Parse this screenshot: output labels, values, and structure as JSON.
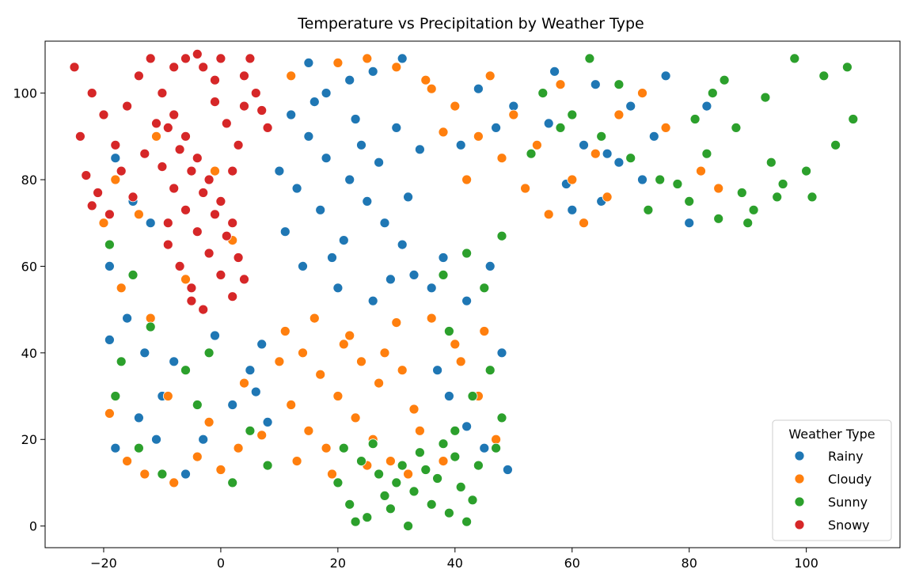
{
  "chart_data": {
    "type": "scatter",
    "title": "Temperature vs Precipitation by Weather Type",
    "xlabel": "",
    "ylabel": "",
    "xlim": [
      -30,
      116
    ],
    "ylim": [
      -5,
      112
    ],
    "x_ticks": [
      -20,
      0,
      20,
      40,
      60,
      80,
      100
    ],
    "y_ticks": [
      0,
      20,
      40,
      60,
      80,
      100
    ],
    "grid": false,
    "legend": {
      "title": "Weather Type",
      "placement": "bottom-right"
    },
    "series": [
      {
        "name": "Rainy",
        "color": "#1f77b4",
        "points": [
          [
            12,
            95
          ],
          [
            15,
            90
          ],
          [
            18,
            85
          ],
          [
            22,
            80
          ],
          [
            25,
            75
          ],
          [
            28,
            70
          ],
          [
            31,
            65
          ],
          [
            14,
            60
          ],
          [
            20,
            55
          ],
          [
            26,
            52
          ],
          [
            33,
            58
          ],
          [
            11,
            68
          ],
          [
            17,
            73
          ],
          [
            24,
            88
          ],
          [
            30,
            92
          ],
          [
            13,
            78
          ],
          [
            19,
            62
          ],
          [
            27,
            84
          ],
          [
            32,
            76
          ],
          [
            16,
            98
          ],
          [
            21,
            66
          ],
          [
            29,
            57
          ],
          [
            23,
            94
          ],
          [
            34,
            87
          ],
          [
            10,
            82
          ],
          [
            18,
            100
          ],
          [
            26,
            105
          ],
          [
            31,
            108
          ],
          [
            15,
            107
          ],
          [
            22,
            103
          ],
          [
            44,
            101
          ],
          [
            50,
            97
          ],
          [
            56,
            93
          ],
          [
            62,
            88
          ],
          [
            68,
            84
          ],
          [
            74,
            90
          ],
          [
            59,
            79
          ],
          [
            65,
            75
          ],
          [
            72,
            80
          ],
          [
            53,
            86
          ],
          [
            47,
            92
          ],
          [
            41,
            88
          ],
          [
            57,
            105
          ],
          [
            64,
            102
          ],
          [
            70,
            97
          ],
          [
            76,
            104
          ],
          [
            80,
            70
          ],
          [
            83,
            97
          ],
          [
            60,
            73
          ],
          [
            66,
            86
          ],
          [
            -18,
            85
          ],
          [
            -15,
            75
          ],
          [
            -12,
            70
          ],
          [
            -19,
            60
          ],
          [
            -16,
            48
          ],
          [
            -13,
            40
          ],
          [
            -19,
            43
          ],
          [
            -10,
            30
          ],
          [
            -14,
            25
          ],
          [
            -18,
            18
          ],
          [
            -6,
            12
          ],
          [
            -3,
            20
          ],
          [
            2,
            28
          ],
          [
            -8,
            38
          ],
          [
            5,
            36
          ],
          [
            -1,
            44
          ],
          [
            6,
            31
          ],
          [
            8,
            24
          ],
          [
            38,
            62
          ],
          [
            42,
            52
          ],
          [
            46,
            60
          ],
          [
            48,
            40
          ],
          [
            39,
            30
          ],
          [
            45,
            18
          ],
          [
            37,
            36
          ],
          [
            49,
            13
          ],
          [
            42,
            23
          ],
          [
            36,
            55
          ],
          [
            -11,
            20
          ],
          [
            7,
            42
          ]
        ]
      },
      {
        "name": "Cloudy",
        "color": "#ff7f0e",
        "points": [
          [
            11,
            45
          ],
          [
            14,
            40
          ],
          [
            17,
            35
          ],
          [
            20,
            30
          ],
          [
            23,
            25
          ],
          [
            26,
            20
          ],
          [
            29,
            15
          ],
          [
            32,
            12
          ],
          [
            12,
            28
          ],
          [
            15,
            22
          ],
          [
            18,
            18
          ],
          [
            21,
            42
          ],
          [
            24,
            38
          ],
          [
            27,
            33
          ],
          [
            30,
            47
          ],
          [
            33,
            27
          ],
          [
            13,
            15
          ],
          [
            16,
            48
          ],
          [
            19,
            12
          ],
          [
            22,
            44
          ],
          [
            25,
            14
          ],
          [
            28,
            40
          ],
          [
            31,
            36
          ],
          [
            34,
            22
          ],
          [
            10,
            38
          ],
          [
            36,
            101
          ],
          [
            40,
            97
          ],
          [
            44,
            90
          ],
          [
            48,
            85
          ],
          [
            52,
            78
          ],
          [
            56,
            72
          ],
          [
            60,
            80
          ],
          [
            64,
            86
          ],
          [
            68,
            95
          ],
          [
            72,
            100
          ],
          [
            76,
            92
          ],
          [
            82,
            82
          ],
          [
            85,
            78
          ],
          [
            58,
            102
          ],
          [
            50,
            95
          ],
          [
            46,
            104
          ],
          [
            42,
            80
          ],
          [
            38,
            91
          ],
          [
            66,
            76
          ],
          [
            62,
            70
          ],
          [
            54,
            88
          ],
          [
            -18,
            80
          ],
          [
            -14,
            72
          ],
          [
            -11,
            90
          ],
          [
            -20,
            70
          ],
          [
            -17,
            55
          ],
          [
            -12,
            48
          ],
          [
            -19,
            26
          ],
          [
            -16,
            15
          ],
          [
            -13,
            12
          ],
          [
            -8,
            10
          ],
          [
            -4,
            16
          ],
          [
            0,
            13
          ],
          [
            3,
            18
          ],
          [
            -9,
            30
          ],
          [
            -2,
            24
          ],
          [
            4,
            33
          ],
          [
            7,
            21
          ],
          [
            36,
            48
          ],
          [
            40,
            42
          ],
          [
            44,
            30
          ],
          [
            47,
            20
          ],
          [
            38,
            15
          ],
          [
            41,
            38
          ],
          [
            45,
            45
          ],
          [
            20,
            107
          ],
          [
            25,
            108
          ],
          [
            30,
            106
          ],
          [
            35,
            103
          ],
          [
            12,
            104
          ],
          [
            -6,
            57
          ],
          [
            -1,
            82
          ],
          [
            2,
            66
          ]
        ]
      },
      {
        "name": "Sunny",
        "color": "#2ca02c",
        "points": [
          [
            21,
            18
          ],
          [
            24,
            15
          ],
          [
            27,
            12
          ],
          [
            30,
            10
          ],
          [
            33,
            8
          ],
          [
            36,
            5
          ],
          [
            39,
            3
          ],
          [
            42,
            1
          ],
          [
            22,
            5
          ],
          [
            25,
            2
          ],
          [
            28,
            7
          ],
          [
            31,
            14
          ],
          [
            34,
            17
          ],
          [
            37,
            11
          ],
          [
            40,
            16
          ],
          [
            43,
            6
          ],
          [
            20,
            10
          ],
          [
            23,
            1
          ],
          [
            26,
            19
          ],
          [
            29,
            4
          ],
          [
            32,
            0
          ],
          [
            35,
            13
          ],
          [
            38,
            19
          ],
          [
            41,
            9
          ],
          [
            44,
            14
          ],
          [
            46,
            36
          ],
          [
            48,
            25
          ],
          [
            43,
            30
          ],
          [
            40,
            22
          ],
          [
            47,
            18
          ],
          [
            39,
            45
          ],
          [
            45,
            55
          ],
          [
            42,
            63
          ],
          [
            48,
            67
          ],
          [
            38,
            58
          ],
          [
            55,
            100
          ],
          [
            60,
            95
          ],
          [
            65,
            90
          ],
          [
            70,
            85
          ],
          [
            75,
            80
          ],
          [
            80,
            75
          ],
          [
            85,
            71
          ],
          [
            90,
            70
          ],
          [
            95,
            76
          ],
          [
            100,
            82
          ],
          [
            105,
            88
          ],
          [
            108,
            94
          ],
          [
            103,
            104
          ],
          [
            98,
            108
          ],
          [
            93,
            99
          ],
          [
            88,
            92
          ],
          [
            83,
            86
          ],
          [
            78,
            79
          ],
          [
            73,
            73
          ],
          [
            68,
            102
          ],
          [
            63,
            108
          ],
          [
            58,
            92
          ],
          [
            53,
            86
          ],
          [
            96,
            79
          ],
          [
            91,
            73
          ],
          [
            86,
            103
          ],
          [
            81,
            94
          ],
          [
            107,
            106
          ],
          [
            101,
            76
          ],
          [
            94,
            84
          ],
          [
            89,
            77
          ],
          [
            84,
            100
          ],
          [
            -19,
            65
          ],
          [
            -15,
            58
          ],
          [
            -12,
            46
          ],
          [
            -18,
            30
          ],
          [
            -14,
            18
          ],
          [
            -10,
            12
          ],
          [
            -6,
            36
          ],
          [
            -2,
            40
          ],
          [
            2,
            10
          ],
          [
            5,
            22
          ],
          [
            8,
            14
          ],
          [
            -17,
            38
          ],
          [
            -4,
            28
          ]
        ]
      },
      {
        "name": "Snowy",
        "color": "#d62728",
        "points": [
          [
            -10,
            100
          ],
          [
            -8,
            95
          ],
          [
            -6,
            90
          ],
          [
            -4,
            85
          ],
          [
            -2,
            80
          ],
          [
            0,
            75
          ],
          [
            2,
            70
          ],
          [
            -9,
            65
          ],
          [
            -7,
            60
          ],
          [
            -5,
            55
          ],
          [
            -3,
            50
          ],
          [
            -1,
            98
          ],
          [
            1,
            93
          ],
          [
            3,
            88
          ],
          [
            -10,
            83
          ],
          [
            -8,
            78
          ],
          [
            -6,
            73
          ],
          [
            -4,
            68
          ],
          [
            -2,
            63
          ],
          [
            0,
            58
          ],
          [
            2,
            53
          ],
          [
            4,
            97
          ],
          [
            -9,
            92
          ],
          [
            -7,
            87
          ],
          [
            -5,
            82
          ],
          [
            -3,
            77
          ],
          [
            -1,
            72
          ],
          [
            1,
            67
          ],
          [
            3,
            62
          ],
          [
            4,
            57
          ],
          [
            -25,
            106
          ],
          [
            -22,
            100
          ],
          [
            -20,
            95
          ],
          [
            -24,
            90
          ],
          [
            -23,
            81
          ],
          [
            -21,
            77
          ],
          [
            -19,
            72
          ],
          [
            -18,
            88
          ],
          [
            -16,
            97
          ],
          [
            -14,
            104
          ],
          [
            -12,
            108
          ],
          [
            -8,
            106
          ],
          [
            -4,
            109
          ],
          [
            0,
            108
          ],
          [
            4,
            104
          ],
          [
            6,
            100
          ],
          [
            -17,
            82
          ],
          [
            -15,
            76
          ],
          [
            -13,
            86
          ],
          [
            -22,
            74
          ],
          [
            -11,
            93
          ],
          [
            -9,
            70
          ],
          [
            2,
            82
          ],
          [
            -3,
            106
          ],
          [
            7,
            96
          ],
          [
            -1,
            103
          ],
          [
            -6,
            108
          ],
          [
            5,
            108
          ],
          [
            8,
            92
          ],
          [
            -5,
            52
          ]
        ]
      }
    ]
  }
}
